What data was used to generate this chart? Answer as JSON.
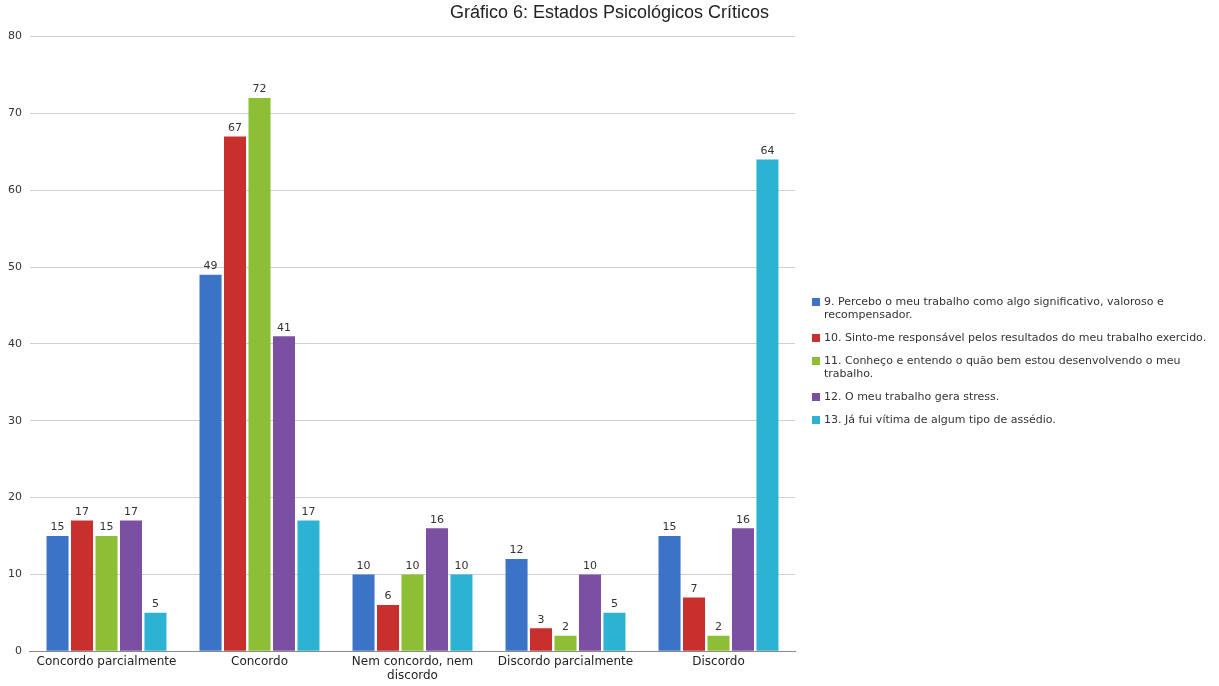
{
  "chart_data": {
    "type": "bar",
    "title": "Gráfico 6: Estados Psicológicos Críticos",
    "categories": [
      "Concordo parcialmente",
      "Concordo",
      "Nem concordo, nem discordo",
      "Discordo parcialmente",
      "Discordo"
    ],
    "series": [
      {
        "name": "9. Percebo o meu trabalho como algo significativo, valoroso e recompensador.",
        "color": "#3b73c6",
        "values": [
          15,
          49,
          10,
          12,
          15
        ]
      },
      {
        "name": "10. Sinto-me responsável pelos resultados do meu trabalho exercido.",
        "color": "#c9302d",
        "values": [
          17,
          67,
          6,
          3,
          7
        ]
      },
      {
        "name": "11. Conheço e entendo o quão bem estou desenvolvendo o meu trabalho.",
        "color": "#8cbf36",
        "values": [
          15,
          72,
          10,
          2,
          2
        ]
      },
      {
        "name": "12. O meu trabalho gera stress.",
        "color": "#7b50a2",
        "values": [
          17,
          41,
          16,
          10,
          16
        ]
      },
      {
        "name": "13. Já fui vítima de algum tipo de assédio.",
        "color": "#2cb3d3",
        "values": [
          5,
          17,
          10,
          5,
          64
        ]
      }
    ],
    "ylim": [
      0,
      80
    ],
    "yticks": [
      0,
      10,
      20,
      30,
      40,
      50,
      60,
      70,
      80
    ],
    "grid": "y",
    "legend": "right",
    "data_labels": true
  }
}
